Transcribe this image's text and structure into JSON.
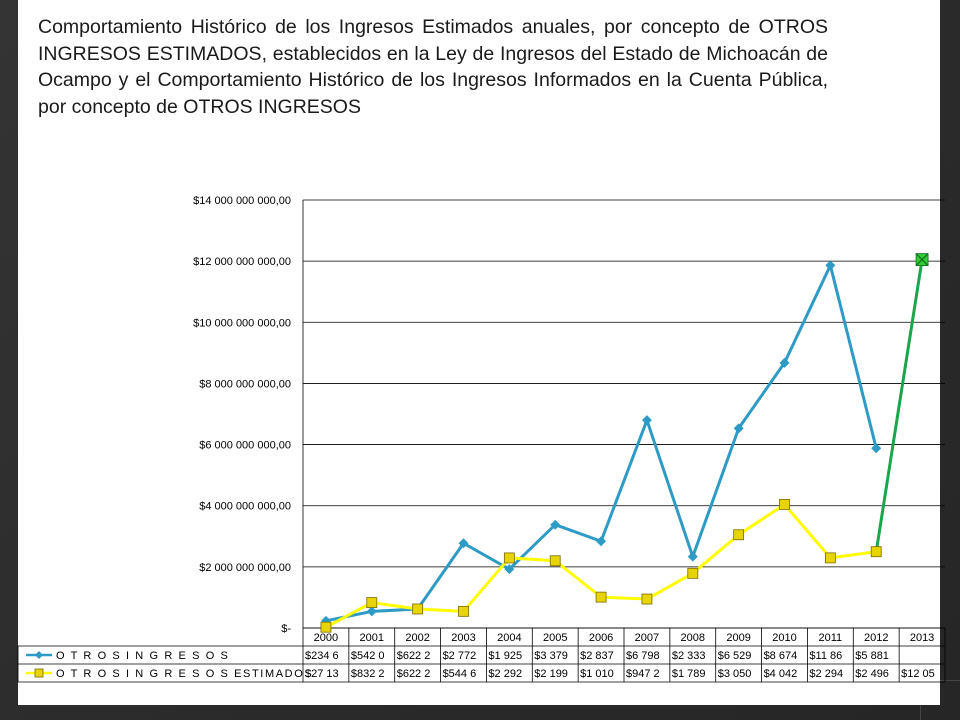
{
  "slide": {
    "title_parts": [
      "Comportamiento Histórico de los Ingresos Estimados anuales, por concepto de ",
      "OTROS INGRESOS ESTIMADOS",
      ", establecidos en la Ley de Ingresos del Estado de Michoacán de Ocampo y el Comportamiento Histórico de los Ingresos Informados en la Cuenta Pública, por concepto de ",
      "OTROS INGRESOS"
    ]
  },
  "colors": {
    "series_ingresos": "#2e9bc6",
    "series_estimados": "#ffff00",
    "marker_estimados_fill": "#e8d400",
    "marker_estimados_edge": "#7a6a00",
    "connector": "#1aa64a",
    "marker_2013": "#33cc33",
    "gridline": "#000000",
    "background": "#ffffff",
    "frame": "#2b2b2b"
  },
  "chart_data": {
    "type": "line",
    "categories": [
      "2000",
      "2001",
      "2002",
      "2003",
      "2004",
      "2005",
      "2006",
      "2007",
      "2008",
      "2009",
      "2010",
      "2011",
      "2012",
      "2013"
    ],
    "ylim": [
      0,
      14000000000
    ],
    "y_ticks": [
      0,
      2000000000,
      4000000000,
      6000000000,
      8000000000,
      10000000000,
      12000000000,
      14000000000
    ],
    "y_tick_labels": [
      "$-",
      "$2 000 000 000,00",
      "$4 000 000 000,00",
      "$6 000 000 000,00",
      "$8 000 000 000,00",
      "$10 000 000 000,00",
      "$12 000 000 000,00",
      "$14 000 000 000,00"
    ],
    "grid": true,
    "legend": "data-table-below",
    "series": [
      {
        "name": "O T R O S I N G R E S O S",
        "marker": "diamond",
        "values": [
          234600000,
          542000000,
          622200000,
          2772000000,
          1925000000,
          3379000000,
          2837000000,
          6798000000,
          2333000000,
          6529000000,
          8674000000,
          11860000000,
          5881000000,
          null
        ],
        "table_labels": [
          "$234 6",
          "$542 0",
          "$622 2",
          "$2 772",
          "$1 925",
          "$3 379",
          "$2 837",
          "$6 798",
          "$2 333",
          "$6 529",
          "$8 674",
          "$11 86",
          "$5 881",
          ""
        ]
      },
      {
        "name": "O T R O S I N G R E S O S ESTIMADOS",
        "marker": "square",
        "values": [
          27130000,
          832200000,
          622200000,
          544600000,
          2292000000,
          2199000000,
          1010000000,
          947200000,
          1789000000,
          3050000000,
          4042000000,
          2294000000,
          2496000000,
          12050000000
        ],
        "table_labels": [
          "$27 13",
          "$832 2",
          "$622 2",
          "$544 6",
          "$2 292",
          "$2 199",
          "$1 010",
          "$947 2",
          "$1 789",
          "$3 050",
          "$4 042",
          "$2 294",
          "$2 496",
          "$12 05"
        ]
      }
    ]
  }
}
